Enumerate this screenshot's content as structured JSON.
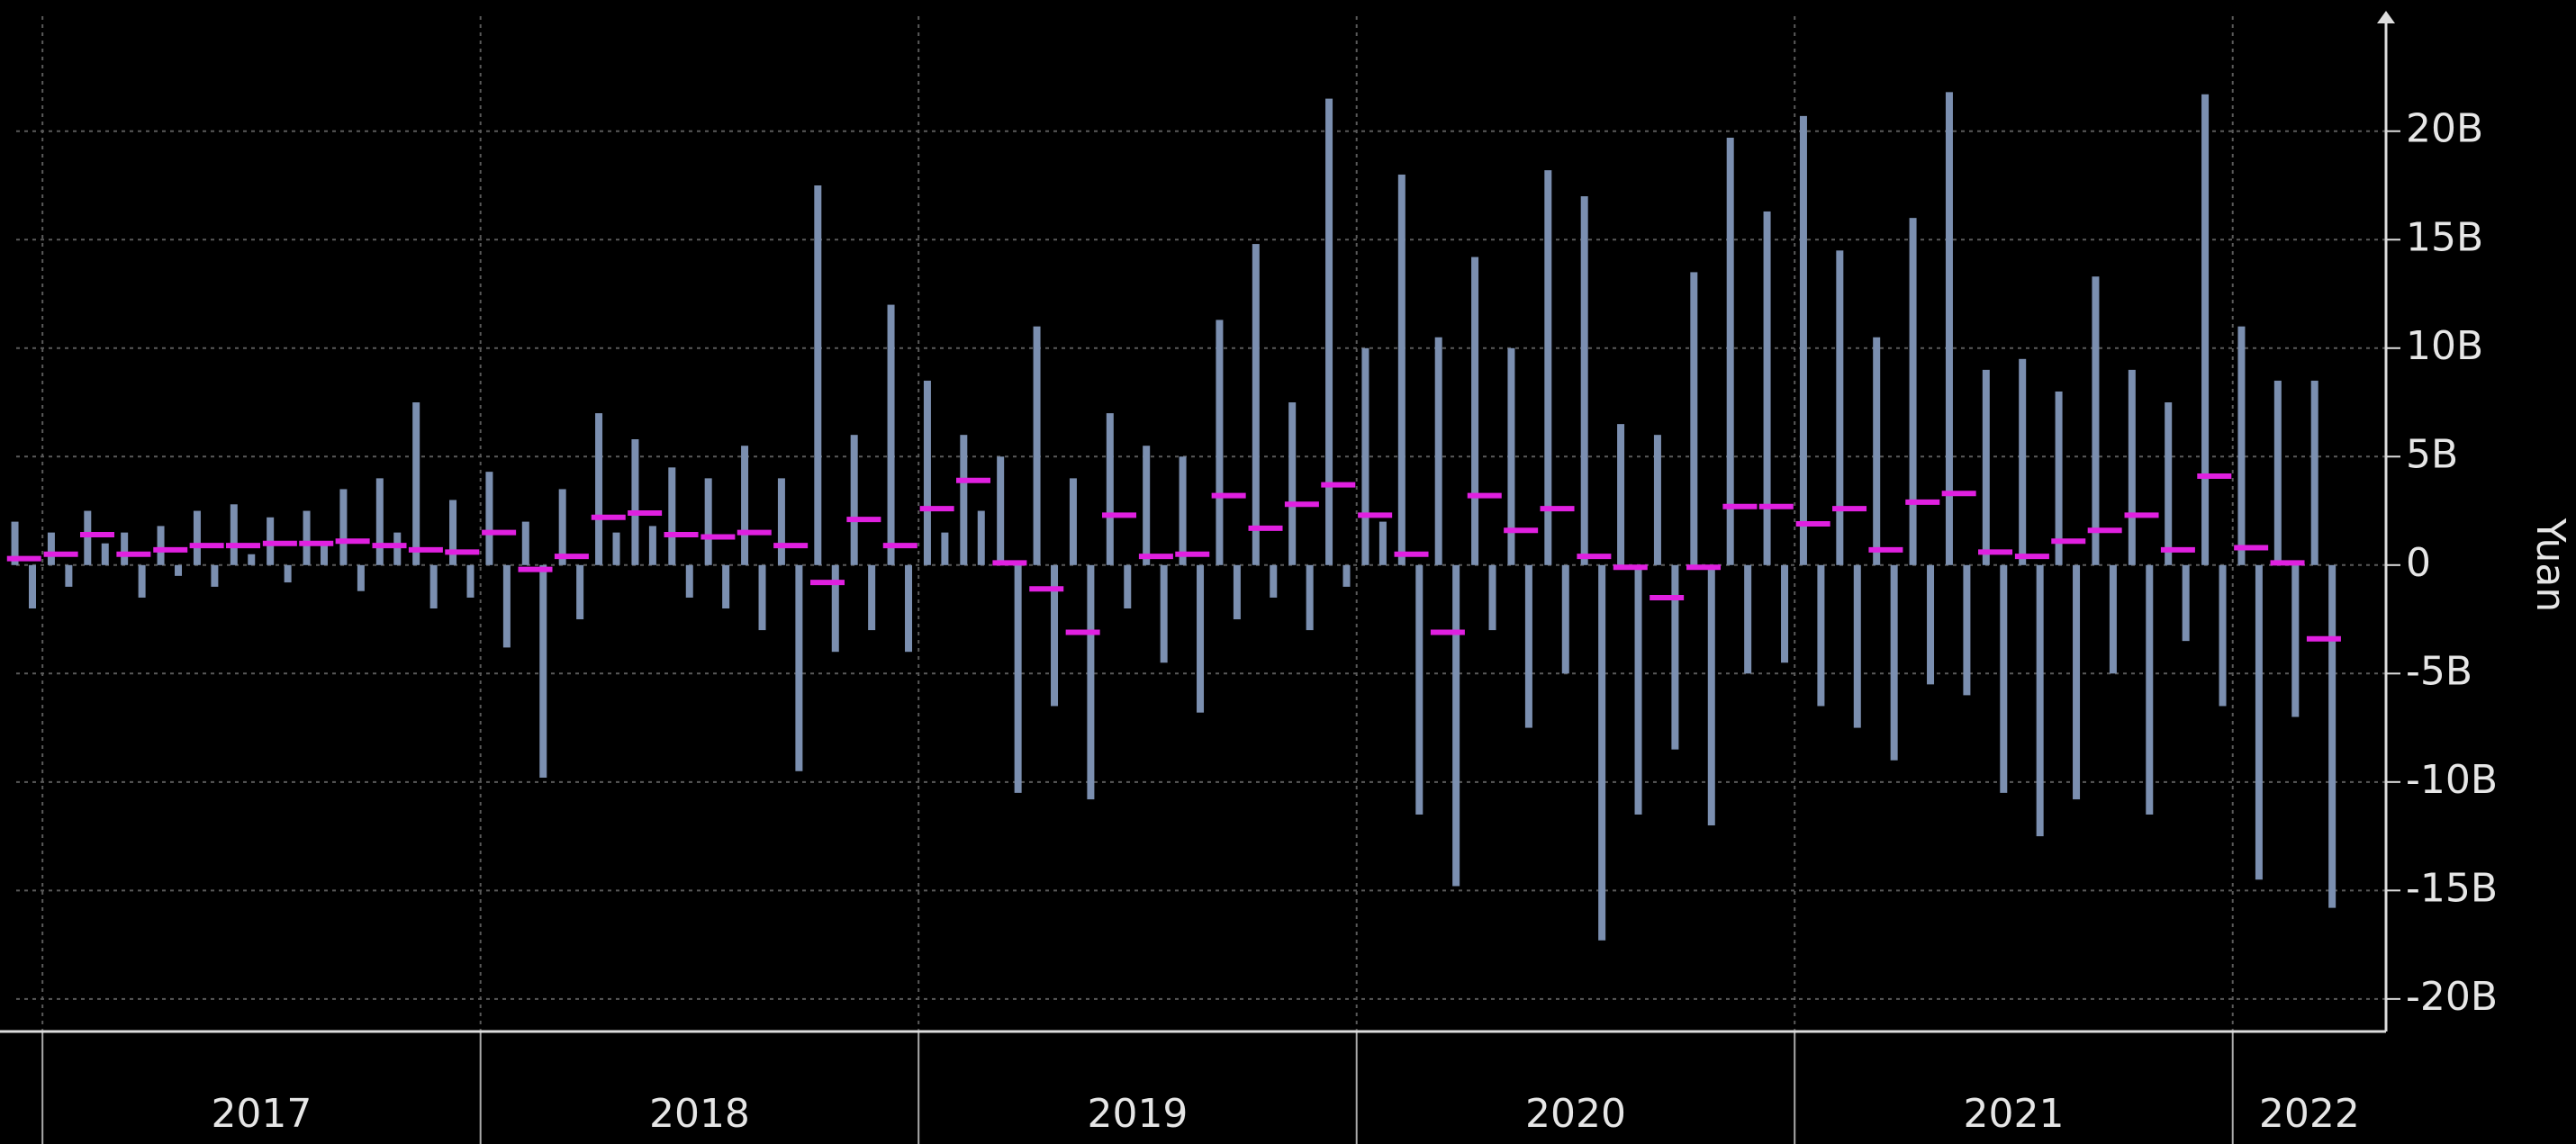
{
  "chart_data": {
    "type": "bar",
    "y_axis_label": "Yuan",
    "xlim": [
      2016.94,
      2022.35
    ],
    "xticks": [
      {
        "value": 2017,
        "label": "2017"
      },
      {
        "value": 2018,
        "label": "2018"
      },
      {
        "value": 2019,
        "label": "2019"
      },
      {
        "value": 2020,
        "label": "2020"
      },
      {
        "value": 2021,
        "label": "2021"
      },
      {
        "value": 2022,
        "label": "2022"
      }
    ],
    "ylim": [
      -21.5,
      25.3
    ],
    "yticks": [
      {
        "value": -20,
        "label": "-20B"
      },
      {
        "value": -15,
        "label": "-15B"
      },
      {
        "value": -10,
        "label": "-10B"
      },
      {
        "value": -5,
        "label": "-5B"
      },
      0,
      {
        "value": 5,
        "label": "5B"
      },
      {
        "value": 10,
        "label": "10B"
      },
      {
        "value": 15,
        "label": "15B"
      },
      {
        "value": 20,
        "label": "20B"
      }
    ],
    "grid": true,
    "series": [
      {
        "type": "bar",
        "color": "#7b8fb0",
        "x": [
          2016.937,
          2016.977,
          2017.02,
          2017.06,
          2017.103,
          2017.143,
          2017.187,
          2017.227,
          2017.27,
          2017.31,
          2017.353,
          2017.393,
          2017.437,
          2017.477,
          2017.52,
          2017.56,
          2017.603,
          2017.643,
          2017.687,
          2017.727,
          2017.77,
          2017.81,
          2017.853,
          2017.893,
          2017.937,
          2017.977,
          2018.02,
          2018.06,
          2018.103,
          2018.143,
          2018.187,
          2018.227,
          2018.27,
          2018.31,
          2018.353,
          2018.393,
          2018.437,
          2018.477,
          2018.52,
          2018.56,
          2018.603,
          2018.643,
          2018.687,
          2018.727,
          2018.77,
          2018.81,
          2018.853,
          2018.893,
          2018.937,
          2018.977,
          2019.02,
          2019.06,
          2019.103,
          2019.143,
          2019.187,
          2019.227,
          2019.27,
          2019.31,
          2019.353,
          2019.393,
          2019.437,
          2019.477,
          2019.52,
          2019.56,
          2019.603,
          2019.643,
          2019.687,
          2019.727,
          2019.77,
          2019.81,
          2019.853,
          2019.893,
          2019.937,
          2019.977,
          2020.02,
          2020.06,
          2020.103,
          2020.143,
          2020.187,
          2020.227,
          2020.27,
          2020.31,
          2020.353,
          2020.393,
          2020.437,
          2020.477,
          2020.52,
          2020.56,
          2020.603,
          2020.643,
          2020.687,
          2020.727,
          2020.77,
          2020.81,
          2020.853,
          2020.893,
          2020.937,
          2020.977,
          2021.02,
          2021.06,
          2021.103,
          2021.143,
          2021.187,
          2021.227,
          2021.27,
          2021.31,
          2021.353,
          2021.393,
          2021.437,
          2021.477,
          2021.52,
          2021.56,
          2021.603,
          2021.643,
          2021.687,
          2021.727,
          2021.77,
          2021.81,
          2021.853,
          2021.893,
          2021.937,
          2021.977,
          2022.02,
          2022.06,
          2022.103,
          2022.143,
          2022.187,
          2022.227
        ],
        "values": [
          2.0,
          -2.0,
          1.5,
          -1.0,
          2.5,
          1.0,
          1.5,
          -1.5,
          1.8,
          -0.5,
          2.5,
          -1.0,
          2.8,
          0.5,
          2.2,
          -0.8,
          2.5,
          1.0,
          3.5,
          -1.2,
          4.0,
          1.5,
          7.5,
          -2.0,
          3.0,
          -1.5,
          4.3,
          -3.8,
          2.0,
          -9.8,
          3.5,
          -2.5,
          7.0,
          1.5,
          5.8,
          1.8,
          4.5,
          -1.5,
          4.0,
          -2.0,
          5.5,
          -3.0,
          4.0,
          -9.5,
          17.5,
          -4.0,
          6.0,
          -3.0,
          12.0,
          -4.0,
          8.5,
          1.5,
          6.0,
          2.5,
          5.0,
          -10.5,
          11.0,
          -6.5,
          4.0,
          -10.8,
          7.0,
          -2.0,
          5.5,
          -4.5,
          5.0,
          -6.8,
          11.3,
          -2.5,
          14.8,
          -1.5,
          7.5,
          -3.0,
          21.5,
          -1.0,
          10.0,
          2.0,
          18.0,
          -11.5,
          10.5,
          -14.8,
          14.2,
          -3.0,
          10.0,
          -7.5,
          18.2,
          -5.0,
          17.0,
          -17.3,
          6.5,
          -11.5,
          6.0,
          -8.5,
          13.5,
          -12.0,
          19.7,
          -5.0,
          16.3,
          -4.5,
          20.7,
          -6.5,
          14.5,
          -7.5,
          10.5,
          -9.0,
          16.0,
          -5.5,
          21.8,
          -6.0,
          9.0,
          -10.5,
          9.5,
          -12.5,
          8.0,
          -10.8,
          13.3,
          -5.0,
          9.0,
          -11.5,
          7.5,
          -3.5,
          21.7,
          -6.5,
          11.0,
          -14.5,
          8.5,
          -7.0,
          8.5,
          -15.8
        ]
      },
      {
        "type": "hline",
        "color": "#e020e0",
        "x": [
          2016.958,
          2017.042,
          2017.125,
          2017.208,
          2017.292,
          2017.375,
          2017.458,
          2017.542,
          2017.625,
          2017.708,
          2017.792,
          2017.875,
          2017.958,
          2018.042,
          2018.125,
          2018.208,
          2018.292,
          2018.375,
          2018.458,
          2018.542,
          2018.625,
          2018.708,
          2018.792,
          2018.875,
          2018.958,
          2019.042,
          2019.125,
          2019.208,
          2019.292,
          2019.375,
          2019.458,
          2019.542,
          2019.625,
          2019.708,
          2019.792,
          2019.875,
          2019.958,
          2020.042,
          2020.125,
          2020.208,
          2020.292,
          2020.375,
          2020.458,
          2020.542,
          2020.625,
          2020.708,
          2020.792,
          2020.875,
          2020.958,
          2021.042,
          2021.125,
          2021.208,
          2021.292,
          2021.375,
          2021.458,
          2021.542,
          2021.625,
          2021.708,
          2021.792,
          2021.875,
          2021.958,
          2022.042,
          2022.125,
          2022.208
        ],
        "values": [
          0.3,
          0.5,
          1.4,
          0.5,
          0.7,
          0.9,
          0.9,
          1.0,
          1.0,
          1.1,
          0.9,
          0.7,
          0.6,
          1.5,
          -0.2,
          0.4,
          2.2,
          2.4,
          1.4,
          1.3,
          1.5,
          0.9,
          -0.8,
          2.1,
          0.9,
          2.6,
          3.9,
          0.1,
          -1.1,
          -3.1,
          2.3,
          0.4,
          0.5,
          3.2,
          1.7,
          2.8,
          3.7,
          2.3,
          0.5,
          -3.1,
          3.2,
          1.6,
          2.6,
          0.4,
          -0.1,
          -1.5,
          -0.1,
          2.7,
          2.7,
          1.9,
          2.6,
          0.7,
          2.9,
          3.3,
          0.6,
          0.4,
          1.1,
          1.6,
          2.3,
          0.7,
          4.1,
          0.8,
          0.1,
          -3.4
        ]
      }
    ]
  }
}
